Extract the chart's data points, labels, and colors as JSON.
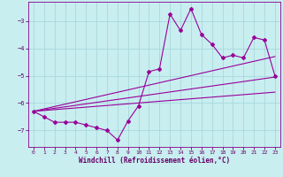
{
  "xlabel": "Windchill (Refroidissement éolien,°C)",
  "bg_color": "#c8eef0",
  "grid_color": "#a8d8dc",
  "line_color": "#990099",
  "xlim": [
    -0.5,
    23.5
  ],
  "ylim": [
    -7.6,
    -2.3
  ],
  "yticks": [
    -7,
    -6,
    -5,
    -4,
    -3
  ],
  "xticks": [
    0,
    1,
    2,
    3,
    4,
    5,
    6,
    7,
    8,
    9,
    10,
    11,
    12,
    13,
    14,
    15,
    16,
    17,
    18,
    19,
    20,
    21,
    22,
    23
  ],
  "line1": [
    [
      0,
      -6.3
    ],
    [
      1,
      -6.5
    ],
    [
      2,
      -6.7
    ],
    [
      3,
      -6.7
    ],
    [
      4,
      -6.7
    ],
    [
      5,
      -6.8
    ],
    [
      6,
      -6.9
    ],
    [
      7,
      -7.0
    ],
    [
      8,
      -7.35
    ],
    [
      9,
      -6.65
    ],
    [
      10,
      -6.1
    ],
    [
      11,
      -4.85
    ],
    [
      12,
      -4.75
    ],
    [
      13,
      -2.75
    ],
    [
      14,
      -3.35
    ],
    [
      15,
      -2.55
    ],
    [
      16,
      -3.5
    ],
    [
      17,
      -3.85
    ],
    [
      18,
      -4.35
    ],
    [
      19,
      -4.25
    ],
    [
      20,
      -4.35
    ],
    [
      21,
      -3.6
    ],
    [
      22,
      -3.7
    ],
    [
      23,
      -5.0
    ]
  ],
  "line2": [
    [
      0,
      -6.3
    ],
    [
      23,
      -5.05
    ]
  ],
  "line3": [
    [
      0,
      -6.3
    ],
    [
      23,
      -4.3
    ]
  ],
  "line4": [
    [
      0,
      -6.3
    ],
    [
      23,
      -5.6
    ]
  ],
  "tick_fontsize": 4.5,
  "xlabel_fontsize": 5.5
}
